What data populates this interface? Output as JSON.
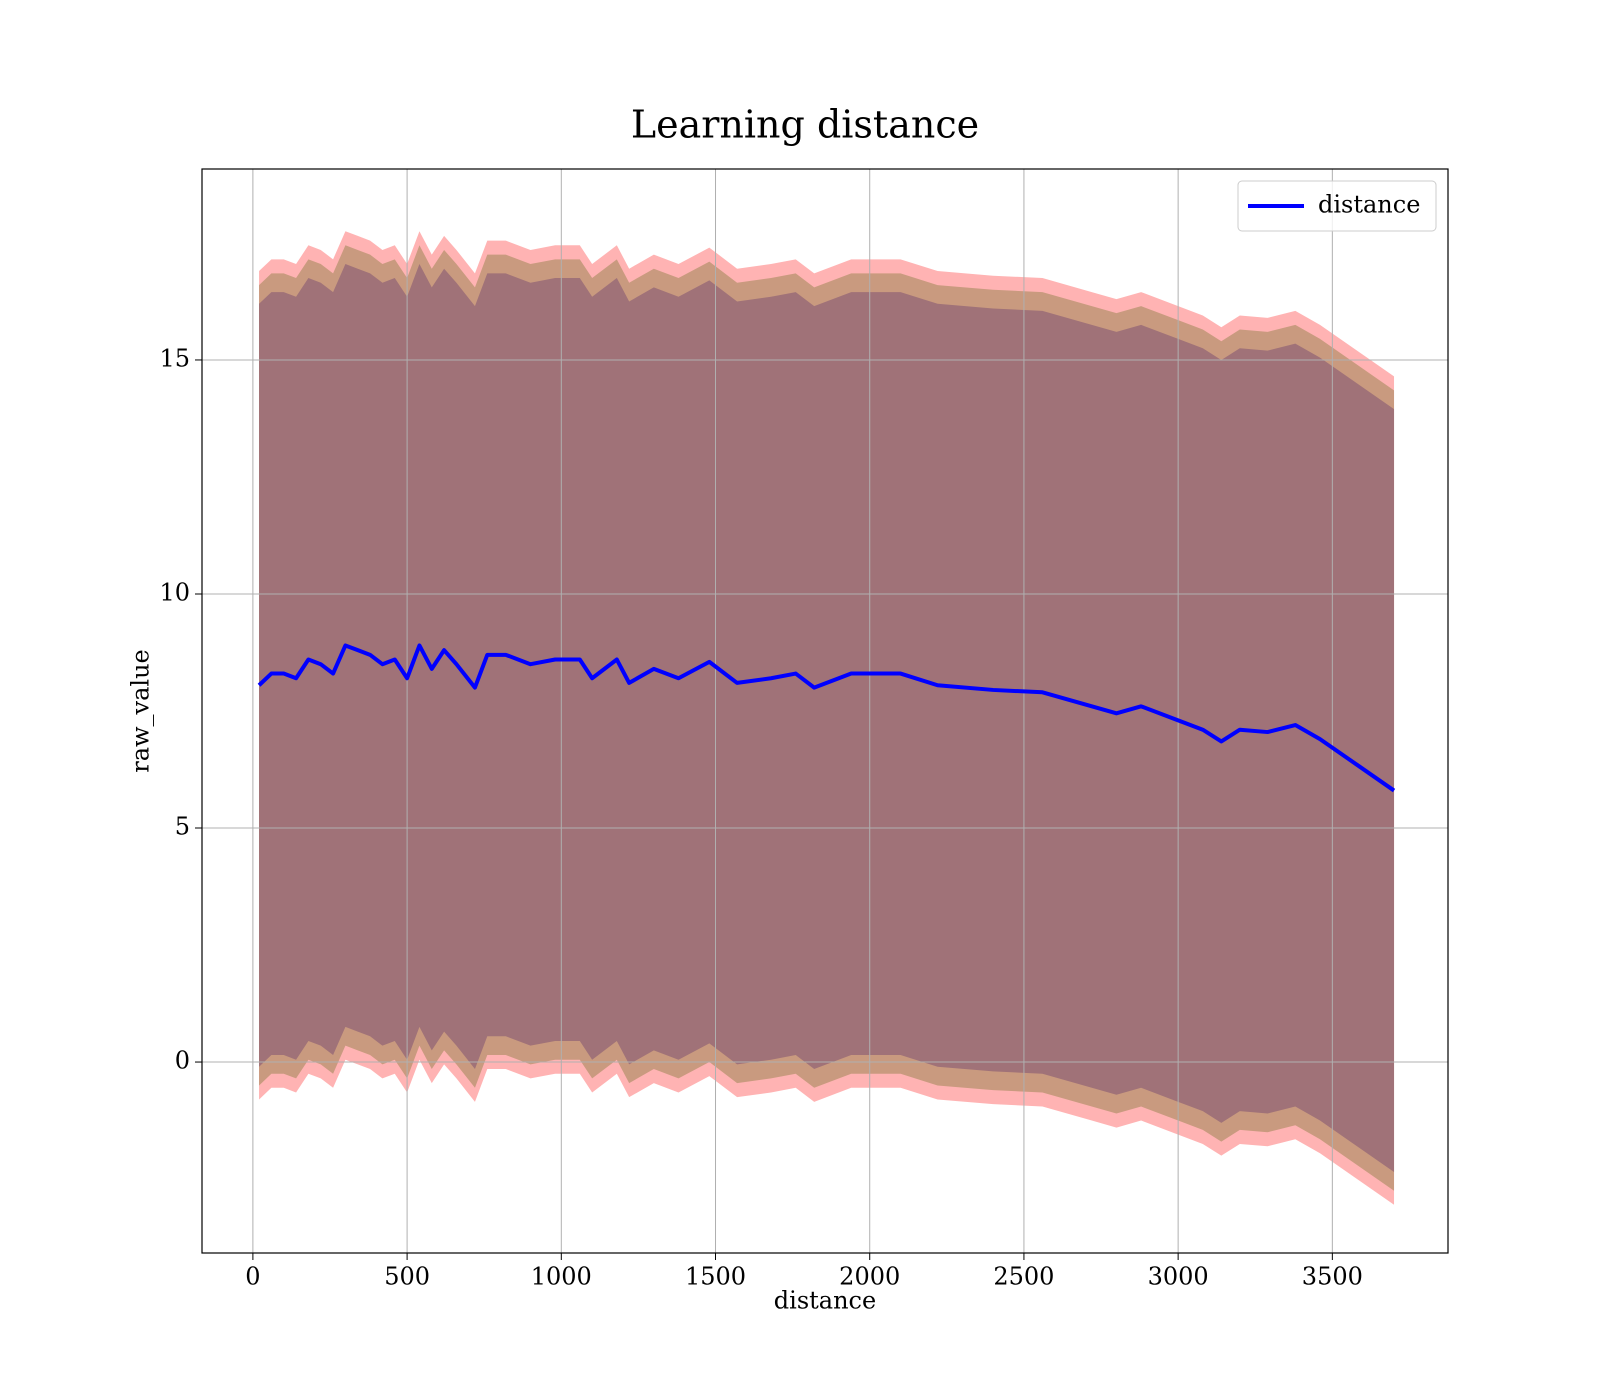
{
  "chart_data": {
    "type": "line",
    "title": "Learning distance",
    "xlabel": "distance",
    "ylabel": "raw_value",
    "x": [
      20,
      60,
      100,
      140,
      180,
      220,
      260,
      300,
      340,
      380,
      420,
      460,
      500,
      540,
      580,
      620,
      660,
      720,
      760,
      820,
      900,
      980,
      1060,
      1100,
      1180,
      1220,
      1300,
      1380,
      1480,
      1570,
      1680,
      1760,
      1820,
      1940,
      2100,
      2220,
      2400,
      2560,
      2720,
      2800,
      2880,
      3000,
      3080,
      3140,
      3200,
      3290,
      3380,
      3460,
      3580,
      3700
    ],
    "series": [
      {
        "name": "distance",
        "color": "#0000ff",
        "values": [
          8.05,
          8.3,
          8.3,
          8.2,
          8.6,
          8.5,
          8.3,
          8.9,
          8.8,
          8.7,
          8.5,
          8.6,
          8.2,
          8.9,
          8.4,
          8.8,
          8.5,
          8.0,
          8.7,
          8.7,
          8.5,
          8.6,
          8.6,
          8.2,
          8.6,
          8.1,
          8.4,
          8.2,
          8.55,
          8.1,
          8.2,
          8.3,
          8.0,
          8.3,
          8.3,
          8.05,
          7.95,
          7.9,
          7.6,
          7.45,
          7.6,
          7.3,
          7.1,
          6.85,
          7.1,
          7.05,
          7.2,
          6.9,
          6.35,
          5.8
        ]
      }
    ],
    "bands": [
      {
        "color": "#ffb3b3",
        "upper": [
          16.9,
          17.15,
          17.15,
          17.05,
          17.45,
          17.35,
          17.15,
          17.75,
          17.65,
          17.55,
          17.35,
          17.45,
          17.05,
          17.75,
          17.25,
          17.65,
          17.35,
          16.85,
          17.55,
          17.55,
          17.35,
          17.45,
          17.45,
          17.05,
          17.45,
          16.95,
          17.25,
          17.05,
          17.4,
          16.95,
          17.05,
          17.15,
          16.85,
          17.15,
          17.15,
          16.9,
          16.8,
          16.75,
          16.45,
          16.3,
          16.45,
          16.15,
          15.95,
          15.7,
          15.95,
          15.9,
          16.05,
          15.75,
          15.2,
          14.65
        ],
        "lower": [
          -0.8,
          -0.55,
          -0.55,
          -0.65,
          -0.25,
          -0.35,
          -0.55,
          0.05,
          -0.05,
          -0.15,
          -0.35,
          -0.25,
          -0.65,
          0.05,
          -0.45,
          -0.05,
          -0.35,
          -0.85,
          -0.15,
          -0.15,
          -0.35,
          -0.25,
          -0.25,
          -0.65,
          -0.25,
          -0.75,
          -0.45,
          -0.65,
          -0.3,
          -0.75,
          -0.65,
          -0.55,
          -0.85,
          -0.55,
          -0.55,
          -0.8,
          -0.9,
          -0.95,
          -1.25,
          -1.4,
          -1.25,
          -1.55,
          -1.75,
          -2.0,
          -1.75,
          -1.8,
          -1.65,
          -1.95,
          -2.5,
          -3.05
        ]
      },
      {
        "color": "#c99a7f",
        "upper": [
          16.6,
          16.85,
          16.85,
          16.75,
          17.15,
          17.05,
          16.85,
          17.45,
          17.35,
          17.25,
          17.05,
          17.15,
          16.75,
          17.45,
          16.95,
          17.35,
          17.05,
          16.55,
          17.25,
          17.25,
          17.05,
          17.15,
          17.15,
          16.75,
          17.15,
          16.65,
          16.95,
          16.75,
          17.1,
          16.65,
          16.75,
          16.85,
          16.55,
          16.85,
          16.85,
          16.6,
          16.5,
          16.45,
          16.15,
          16.0,
          16.15,
          15.85,
          15.65,
          15.4,
          15.65,
          15.6,
          15.75,
          15.45,
          14.9,
          14.35
        ],
        "lower": [
          -0.5,
          -0.25,
          -0.25,
          -0.35,
          0.05,
          -0.05,
          -0.25,
          0.35,
          0.25,
          0.15,
          -0.05,
          0.05,
          -0.35,
          0.35,
          -0.15,
          0.25,
          -0.05,
          -0.55,
          0.15,
          0.15,
          -0.05,
          0.05,
          0.05,
          -0.35,
          0.05,
          -0.45,
          -0.15,
          -0.35,
          0,
          -0.45,
          -0.35,
          -0.25,
          -0.55,
          -0.25,
          -0.25,
          -0.5,
          -0.6,
          -0.65,
          -0.95,
          -1.1,
          -0.95,
          -1.25,
          -1.45,
          -1.7,
          -1.45,
          -1.5,
          -1.35,
          -1.65,
          -2.2,
          -2.75
        ]
      },
      {
        "color": "#a07278",
        "upper": [
          16.2,
          16.45,
          16.45,
          16.35,
          16.75,
          16.65,
          16.45,
          17.05,
          16.95,
          16.85,
          16.65,
          16.75,
          16.35,
          17.05,
          16.55,
          16.95,
          16.65,
          16.15,
          16.85,
          16.85,
          16.65,
          16.75,
          16.75,
          16.35,
          16.75,
          16.25,
          16.55,
          16.35,
          16.7,
          16.25,
          16.35,
          16.45,
          16.15,
          16.45,
          16.45,
          16.2,
          16.1,
          16.05,
          15.75,
          15.6,
          15.75,
          15.45,
          15.25,
          15.0,
          15.25,
          15.2,
          15.35,
          15.05,
          14.5,
          13.95
        ],
        "lower": [
          -0.1,
          0.15,
          0.15,
          0.05,
          0.45,
          0.35,
          0.15,
          0.75,
          0.65,
          0.55,
          0.35,
          0.45,
          0.05,
          0.75,
          0.25,
          0.65,
          0.35,
          -0.15,
          0.55,
          0.55,
          0.35,
          0.45,
          0.45,
          0.05,
          0.45,
          -0.05,
          0.25,
          0.05,
          0.4,
          -0.05,
          0.05,
          0.15,
          -0.15,
          0.15,
          0.15,
          -0.1,
          -0.2,
          -0.25,
          -0.55,
          -0.7,
          -0.55,
          -0.85,
          -1.05,
          -1.3,
          -1.05,
          -1.1,
          -0.95,
          -1.25,
          -1.8,
          -2.35
        ]
      }
    ],
    "xlim": [
      -165,
      3875
    ],
    "ylim": [
      -4.08,
      19.08
    ],
    "xticks": [
      0,
      500,
      1000,
      1500,
      2000,
      2500,
      3000,
      3500
    ],
    "yticks": [
      0,
      5,
      10,
      15
    ],
    "grid": true,
    "legend": "upper right"
  }
}
